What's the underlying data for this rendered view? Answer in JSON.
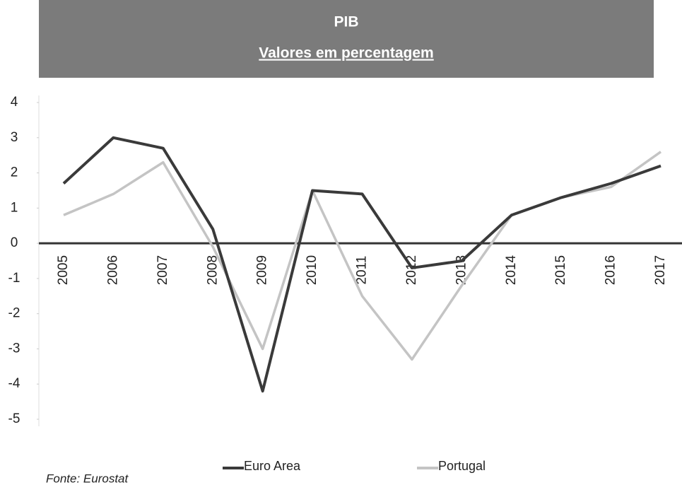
{
  "chart_data": {
    "type": "line",
    "title": "PIB",
    "subtitle": "Valores em percentagem",
    "source": "Fonte: Eurostat",
    "categories": [
      "2005",
      "2006",
      "2007",
      "2008",
      "2009",
      "2010",
      "2011",
      "2012",
      "2013",
      "2014",
      "2015",
      "2016",
      "2017"
    ],
    "series": [
      {
        "name": "Euro Area",
        "color": "#3a3a3a",
        "values": [
          1.7,
          3.0,
          2.7,
          0.4,
          -4.2,
          1.5,
          1.4,
          -0.7,
          -0.5,
          0.8,
          1.3,
          1.7,
          2.2
        ]
      },
      {
        "name": "Portugal",
        "color": "#c4c4c4",
        "values": [
          0.8,
          1.4,
          2.3,
          -0.1,
          -3.0,
          1.5,
          -1.5,
          -3.3,
          -1.2,
          0.8,
          1.3,
          1.6,
          2.6
        ]
      }
    ],
    "ylim": [
      -5,
      4
    ],
    "yticks": [
      4,
      3,
      2,
      1,
      0,
      -1,
      -2,
      -3,
      -4,
      -5
    ]
  }
}
